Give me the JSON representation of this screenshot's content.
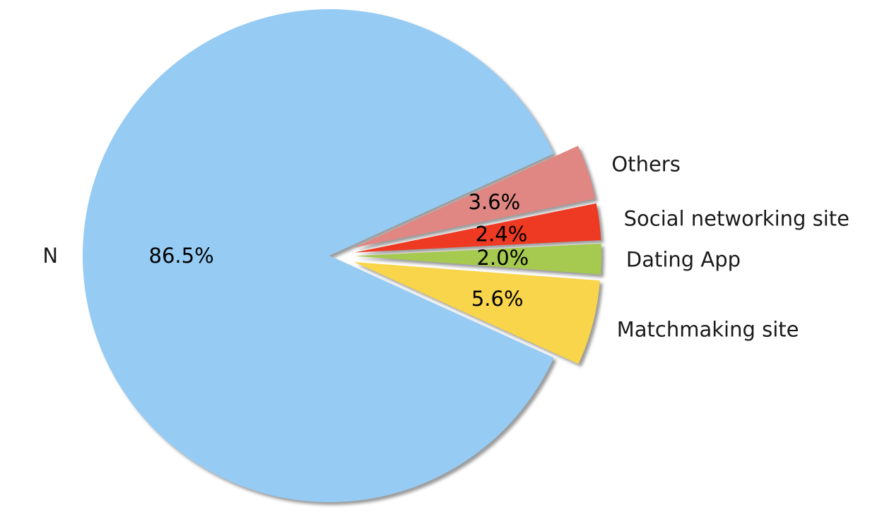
{
  "chart_data": {
    "type": "pie",
    "title": "",
    "shadow": true,
    "slices": [
      {
        "label": "N",
        "value": 86.5,
        "pct_label": "86.5%",
        "color": "#96cbf3",
        "exploded": false
      },
      {
        "label": "Matchmaking site",
        "value": 5.6,
        "pct_label": "5.6%",
        "color": "#f8d54a",
        "exploded": true
      },
      {
        "label": "Dating App",
        "value": 2.0,
        "pct_label": "2.0%",
        "color": "#a6c94f",
        "exploded": true
      },
      {
        "label": "Social networking site",
        "value": 2.4,
        "pct_label": "2.4%",
        "color": "#ee3a23",
        "exploded": true
      },
      {
        "label": "Others",
        "value": 3.6,
        "pct_label": "3.6%",
        "color": "#e08783",
        "exploded": true
      }
    ]
  }
}
